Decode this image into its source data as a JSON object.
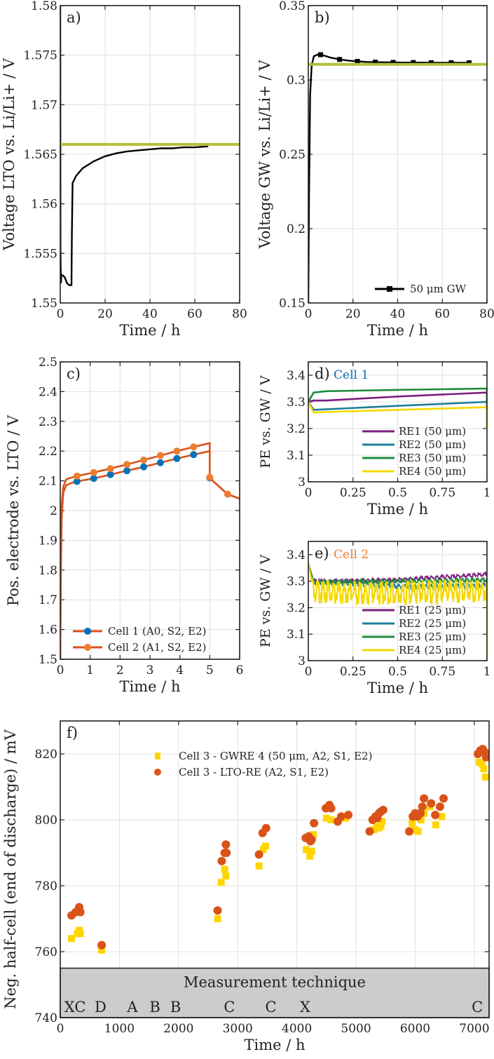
{
  "chart_data": [
    {
      "id": "a",
      "type": "line",
      "panel_label": "a)",
      "xlabel": "Time / h",
      "ylabel": "Voltage LTO vs. Li/Li+ / V",
      "xlim": [
        0,
        80
      ],
      "ylim": [
        1.55,
        1.58
      ],
      "xticks": [
        "0",
        "20",
        "40",
        "60",
        "80"
      ],
      "yticks": [
        "1.55",
        "1.555",
        "1.56",
        "1.565",
        "1.57",
        "1.575",
        "1.58"
      ],
      "grid": true,
      "series": [
        {
          "name": "LTO voltage",
          "color": "#000000",
          "x": [
            0,
            0.1,
            0.3,
            0.5,
            1,
            2,
            3,
            4,
            5,
            5.2,
            5.5,
            7,
            10,
            15,
            20,
            25,
            30,
            35,
            40,
            45,
            50,
            55,
            60,
            66
          ],
          "y": [
            1.58,
            1.555,
            1.552,
            1.5528,
            1.5528,
            1.5526,
            1.552,
            1.5518,
            1.5518,
            1.557,
            1.5621,
            1.5628,
            1.5636,
            1.5643,
            1.5648,
            1.5651,
            1.5653,
            1.5654,
            1.5655,
            1.5656,
            1.5656,
            1.5657,
            1.5657,
            1.5658
          ]
        },
        {
          "name": "Reference level",
          "color": "#b5bf3a",
          "x": [
            0,
            80
          ],
          "y": [
            1.566,
            1.566
          ]
        }
      ]
    },
    {
      "id": "b",
      "type": "line",
      "panel_label": "b)",
      "xlabel": "Time / h",
      "ylabel": "Voltage GW vs. Li/Li+ / V",
      "xlim": [
        0,
        80
      ],
      "ylim": [
        0.15,
        0.35
      ],
      "xticks": [
        "0",
        "20",
        "40",
        "60",
        "80"
      ],
      "yticks": [
        "0.15",
        "0.2",
        "0.25",
        "0.3",
        "0.35"
      ],
      "grid": true,
      "legend": {
        "position": "bottom-right",
        "entries": [
          "50 μm GW"
        ]
      },
      "series": [
        {
          "name": "50 μm GW",
          "color": "#000000",
          "marker": "square",
          "x": [
            0,
            0.3,
            0.8,
            1.5,
            2.5,
            4,
            5.5,
            8,
            10,
            14,
            18,
            22,
            26,
            30,
            34,
            38,
            42,
            47,
            51,
            55,
            60,
            64,
            68,
            72
          ],
          "y": [
            0.15,
            0.22,
            0.29,
            0.31,
            0.316,
            0.317,
            0.317,
            0.316,
            0.315,
            0.3138,
            0.313,
            0.3125,
            0.3121,
            0.312,
            0.3119,
            0.3118,
            0.3117,
            0.3117,
            0.3117,
            0.3116,
            0.3116,
            0.3116,
            0.3116,
            0.3116
          ],
          "marker_x": [
            5.5,
            14,
            22,
            30,
            38,
            47,
            55,
            64,
            72
          ]
        },
        {
          "name": "Reference level",
          "color": "#b5bf3a",
          "x": [
            0,
            80
          ],
          "y": [
            0.3105,
            0.3105
          ]
        }
      ]
    },
    {
      "id": "c",
      "type": "line",
      "panel_label": "c)",
      "xlabel": "Time / h",
      "ylabel": "Pos. electrode vs. LTO / V",
      "xlim": [
        0,
        6
      ],
      "ylim": [
        1.5,
        2.5
      ],
      "xticks": [
        "0",
        "1",
        "2",
        "3",
        "4",
        "5",
        "6"
      ],
      "yticks": [
        "1.5",
        "1.6",
        "1.7",
        "1.8",
        "1.9",
        "2",
        "2.1",
        "2.2",
        "2.3",
        "2.4",
        "2.5"
      ],
      "grid": true,
      "legend": {
        "position": "bottom-left",
        "entries": [
          "Cell 1 (A0, S2, E2)",
          "Cell 2 (A1, S2, E2)"
        ]
      },
      "series": [
        {
          "name": "Cell 1 (A0, S2, E2)",
          "color": "#d95319",
          "marker_color": "#0072bd",
          "x": [
            0,
            0.02,
            0.05,
            0.1,
            0.2,
            0.35,
            0.56,
            1.12,
            1.68,
            2.23,
            2.79,
            3.35,
            3.9,
            4.46,
            5.0,
            5.0,
            5.1,
            5.6,
            6.0
          ],
          "y": [
            1.5,
            1.8,
            1.98,
            2.06,
            2.085,
            2.092,
            2.098,
            2.108,
            2.121,
            2.134,
            2.147,
            2.161,
            2.175,
            2.188,
            2.2,
            2.12,
            2.1,
            2.055,
            2.04
          ],
          "marker_x": [
            0.56,
            1.12,
            1.68,
            2.23,
            2.79,
            3.35,
            3.9,
            4.46,
            5.0
          ],
          "marker_y": [
            2.098,
            2.108,
            2.121,
            2.134,
            2.147,
            2.161,
            2.175,
            2.188,
            2.11
          ]
        },
        {
          "name": "Cell 2 (A1, S2, E2)",
          "color": "#d95319",
          "marker_color": "#ed7d31",
          "x": [
            0,
            0.02,
            0.05,
            0.1,
            0.2,
            0.35,
            0.56,
            1.12,
            1.68,
            2.23,
            2.79,
            3.35,
            3.9,
            4.46,
            5.0,
            5.0,
            5.1,
            5.6,
            6.0
          ],
          "y": [
            1.5,
            1.85,
            2.02,
            2.08,
            2.105,
            2.11,
            2.116,
            2.128,
            2.141,
            2.155,
            2.17,
            2.185,
            2.2,
            2.214,
            2.227,
            2.12,
            2.1,
            2.055,
            2.04
          ],
          "marker_x": [
            0.56,
            1.12,
            1.68,
            2.23,
            2.79,
            3.35,
            3.9,
            4.46,
            5.0,
            5.6
          ],
          "marker_y": [
            2.116,
            2.128,
            2.141,
            2.155,
            2.17,
            2.185,
            2.2,
            2.214,
            2.112,
            2.055
          ]
        }
      ]
    },
    {
      "id": "d",
      "type": "line",
      "panel_label": "d)",
      "panel_title": "Cell 1",
      "panel_title_color": "#0072bd",
      "xlabel": "Time / h",
      "ylabel": "PE vs. GW / V",
      "xlim": [
        0,
        1
      ],
      "ylim": [
        3.0,
        3.45
      ],
      "xticks": [
        "0",
        "0.25",
        "0.5",
        "0.75",
        "1"
      ],
      "yticks": [
        "3",
        "3.1",
        "3.2",
        "3.3",
        "3.4"
      ],
      "grid": true,
      "legend": {
        "position": "bottom-right",
        "entries": [
          "RE1 (50 μm)",
          "RE2 (50 μm)",
          "RE3 (50 μm)",
          "RE4 (50 μm)"
        ]
      },
      "series": [
        {
          "name": "RE1 (50 μm)",
          "color": "#7e1e80",
          "x": [
            0,
            0.03,
            0.1,
            0.5,
            1.0
          ],
          "y": [
            3.3,
            3.305,
            3.305,
            3.32,
            3.335
          ]
        },
        {
          "name": "RE2 (50 μm)",
          "color": "#1f7f99",
          "x": [
            0,
            0.03,
            0.1,
            0.5,
            1.0
          ],
          "y": [
            3.3,
            3.27,
            3.272,
            3.285,
            3.3
          ]
        },
        {
          "name": "RE3 (50 μm)",
          "color": "#1e8a3c",
          "x": [
            0,
            0.03,
            0.1,
            0.5,
            1.0
          ],
          "y": [
            3.3,
            3.335,
            3.34,
            3.345,
            3.35
          ]
        },
        {
          "name": "RE4 (50 μm)",
          "color": "#f5d800",
          "x": [
            0,
            0.03,
            0.1,
            0.5,
            1.0
          ],
          "y": [
            3.3,
            3.26,
            3.262,
            3.27,
            3.28
          ]
        }
      ]
    },
    {
      "id": "e",
      "type": "line",
      "panel_label": "e)",
      "panel_title": "Cell 2",
      "panel_title_color": "#ed7d31",
      "xlabel": "Time / h",
      "ylabel": "PE vs. GW / V",
      "xlim": [
        0,
        1
      ],
      "ylim": [
        3.0,
        3.45
      ],
      "xticks": [
        "0",
        "0.25",
        "0.5",
        "0.75",
        "1"
      ],
      "yticks": [
        "3",
        "3.1",
        "3.2",
        "3.3",
        "3.4"
      ],
      "grid": true,
      "legend": {
        "position": "bottom-right",
        "entries": [
          "RE1 (25 μm)",
          "RE2 (25 μm)",
          "RE3 (25 μm)",
          "RE4 (25 μm)"
        ]
      },
      "series": [
        {
          "name": "RE1 (25 μm)",
          "color": "#7e1e80",
          "x": [
            0,
            0.03,
            0.25,
            0.5,
            0.75,
            1.0
          ],
          "y": [
            3.37,
            3.3,
            3.3,
            3.305,
            3.315,
            3.325
          ],
          "noise": 0.008
        },
        {
          "name": "RE2 (25 μm)",
          "color": "#1f7f99",
          "x": [
            0,
            0.03,
            0.25,
            0.5,
            0.75,
            1.0
          ],
          "y": [
            3.37,
            3.295,
            3.29,
            3.28,
            3.28,
            3.285
          ],
          "noise": 0.01
        },
        {
          "name": "RE3 (25 μm)",
          "color": "#1e8a3c",
          "x": [
            0,
            0.03,
            0.25,
            0.5,
            0.75,
            1.0
          ],
          "y": [
            3.37,
            3.295,
            3.298,
            3.3,
            3.302,
            3.305
          ],
          "noise": 0.008
        },
        {
          "name": "RE4 (25 μm)",
          "color": "#f5d800",
          "x": [
            0,
            0.03,
            0.25,
            0.5,
            0.75,
            1.0
          ],
          "y": [
            3.37,
            3.26,
            3.255,
            3.255,
            3.26,
            3.265
          ],
          "noise": 0.045
        }
      ]
    },
    {
      "id": "f",
      "type": "scatter",
      "panel_label": "f)",
      "xlabel": "Time / h",
      "ylabel": "Neg. half-cell (end of discharge) / mV",
      "xlim": [
        0,
        7250
      ],
      "ylim": [
        740,
        830
      ],
      "xticks": [
        "0",
        "1000",
        "2000",
        "3000",
        "4000",
        "5000",
        "6000",
        "7000"
      ],
      "yticks": [
        "740",
        "760",
        "780",
        "800",
        "820"
      ],
      "grid": true,
      "legend": {
        "position": "top-center",
        "entries": [
          "Cell 3 - GWRE 4 (50 μm, A2, S1, E2)",
          "Cell 3 - LTO-RE (A2, S1, E2)"
        ]
      },
      "band": {
        "title": "Measurement technique",
        "y_range": [
          740,
          755
        ],
        "color": "#cccccc",
        "labels": [
          {
            "text": "XC",
            "x": 250
          },
          {
            "text": "D",
            "x": 680
          },
          {
            "text": "A",
            "x": 1220
          },
          {
            "text": "B",
            "x": 1600
          },
          {
            "text": "B",
            "x": 1950
          },
          {
            "text": "C",
            "x": 2860
          },
          {
            "text": "C",
            "x": 3560
          },
          {
            "text": "X",
            "x": 4140
          },
          {
            "text": "C",
            "x": 7050
          }
        ]
      },
      "series": [
        {
          "name": "Cell 3 - GWRE 4 (50 μm, A2, S1, E2)",
          "color": "#ffd500",
          "marker": "square",
          "points": [
            [
              190,
              764
            ],
            [
              290,
              765.5
            ],
            [
              320,
              766.5
            ],
            [
              340,
              765.5
            ],
            [
              700,
              760.5
            ],
            [
              2660,
              770
            ],
            [
              2720,
              781
            ],
            [
              2780,
              785
            ],
            [
              2800,
              783
            ],
            [
              3360,
              786
            ],
            [
              3430,
              791
            ],
            [
              3470,
              792
            ],
            [
              4160,
              791
            ],
            [
              4220,
              789
            ],
            [
              4250,
              790.5
            ],
            [
              4280,
              795.5
            ],
            [
              4500,
              800.5
            ],
            [
              4580,
              800
            ],
            [
              4820,
              800.5
            ],
            [
              5300,
              797
            ],
            [
              5350,
              798
            ],
            [
              5380,
              797.5
            ],
            [
              5420,
              798
            ],
            [
              5440,
              799.5
            ],
            [
              5900,
              796.5
            ],
            [
              5950,
              799
            ],
            [
              6000,
              797
            ],
            [
              6050,
              796.5
            ],
            [
              6100,
              800
            ],
            [
              6150,
              802
            ],
            [
              6250,
              804
            ],
            [
              6350,
              798.5
            ],
            [
              6450,
              801
            ],
            [
              7080,
              817.5
            ],
            [
              7130,
              817
            ],
            [
              7160,
              815.5
            ],
            [
              7190,
              813
            ]
          ]
        },
        {
          "name": "Cell 3 - LTO-RE (A2, S1, E2)",
          "color": "#d95319",
          "marker": "circle",
          "points": [
            [
              190,
              771
            ],
            [
              260,
              772
            ],
            [
              300,
              772.5
            ],
            [
              320,
              773.5
            ],
            [
              340,
              772
            ],
            [
              700,
              762
            ],
            [
              2660,
              772.5
            ],
            [
              2730,
              787.5
            ],
            [
              2780,
              790
            ],
            [
              2800,
              792.5
            ],
            [
              2810,
              790
            ],
            [
              3360,
              789.5
            ],
            [
              3420,
              796
            ],
            [
              3480,
              797.5
            ],
            [
              4150,
              794.5
            ],
            [
              4200,
              795
            ],
            [
              4230,
              793.5
            ],
            [
              4250,
              794
            ],
            [
              4290,
              799
            ],
            [
              4490,
              803.5
            ],
            [
              4550,
              804.5
            ],
            [
              4580,
              803.5
            ],
            [
              4690,
              799.5
            ],
            [
              4750,
              801
            ],
            [
              4870,
              801.5
            ],
            [
              5230,
              796.5
            ],
            [
              5280,
              800
            ],
            [
              5330,
              801
            ],
            [
              5360,
              800.5
            ],
            [
              5390,
              802
            ],
            [
              5420,
              802.5
            ],
            [
              5460,
              803
            ],
            [
              5900,
              796.5
            ],
            [
              5960,
              801
            ],
            [
              6000,
              802
            ],
            [
              6040,
              801
            ],
            [
              6090,
              802
            ],
            [
              6120,
              804
            ],
            [
              6150,
              806.5
            ],
            [
              6270,
              805
            ],
            [
              6340,
              801.5
            ],
            [
              6420,
              804
            ],
            [
              6480,
              806.5
            ],
            [
              7060,
              820
            ],
            [
              7100,
              821
            ],
            [
              7140,
              821.5
            ],
            [
              7180,
              820.5
            ],
            [
              7200,
              819
            ]
          ]
        }
      ]
    }
  ]
}
